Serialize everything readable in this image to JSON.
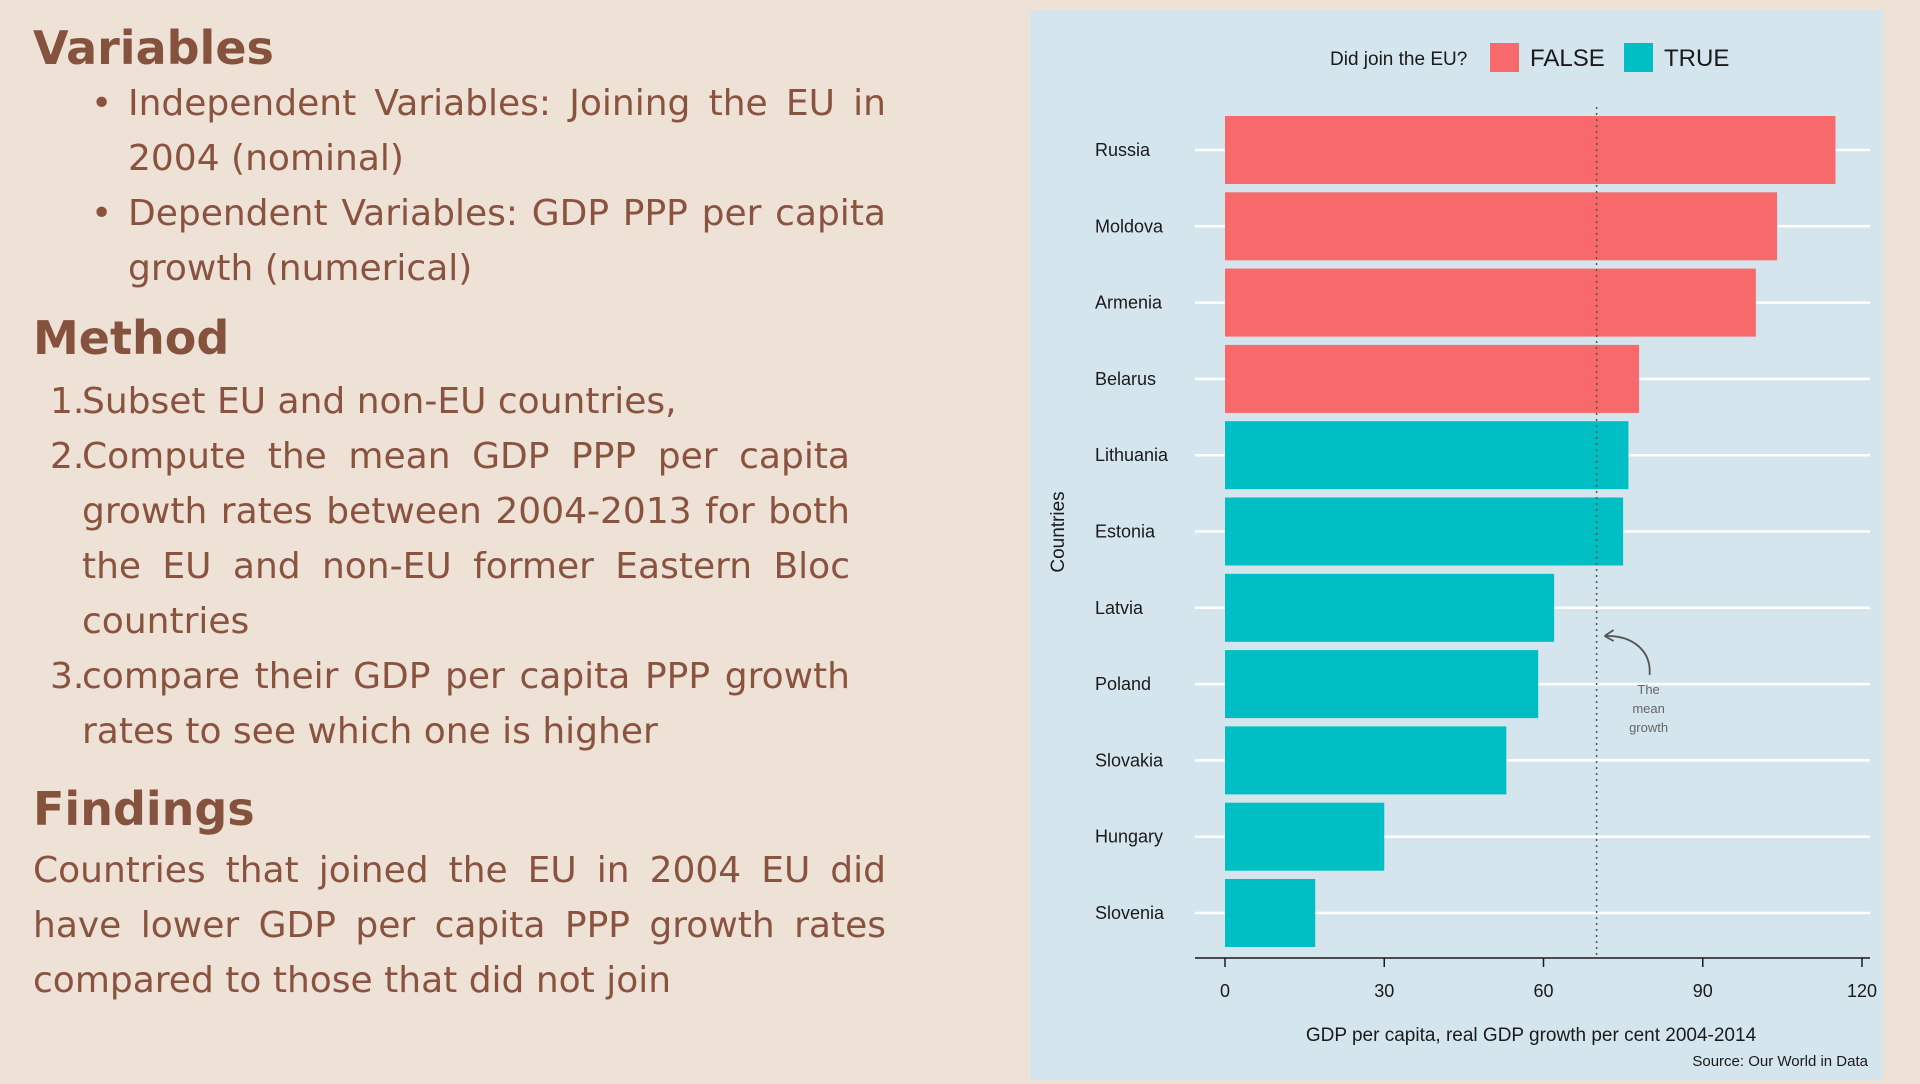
{
  "left": {
    "variables": {
      "heading": "Variables",
      "items": [
        "Independent Variables: Joining the EU in 2004 (nominal)",
        "Dependent Variables: GDP PPP per capita growth (numerical)"
      ]
    },
    "method": {
      "heading": "Method",
      "items": [
        {
          "num": "1.",
          "text": "Subset EU and non-EU countries,"
        },
        {
          "num": "2.",
          "text": "Compute the mean GDP PPP per capita growth rates between 2004-2013 for both the EU and non-EU former Eastern Bloc countries"
        },
        {
          "num": "3.",
          "text": "compare their GDP per capita PPP growth rates to see which one is higher"
        }
      ]
    },
    "findings": {
      "heading": "Findings",
      "text": "Countries that joined the EU in 2004 EU did have lower GDP per capita PPP growth rates compared to those that did not join"
    }
  },
  "chart_data": {
    "type": "bar",
    "orientation": "horizontal",
    "categories": [
      "Russia",
      "Moldova",
      "Armenia",
      "Belarus",
      "Lithuania",
      "Estonia",
      "Latvia",
      "Poland",
      "Slovakia",
      "Hungary",
      "Slovenia"
    ],
    "values": [
      115,
      104,
      100,
      78,
      76,
      75,
      62,
      59,
      53,
      30,
      17
    ],
    "joined_eu": [
      "FALSE",
      "FALSE",
      "FALSE",
      "FALSE",
      "TRUE",
      "TRUE",
      "TRUE",
      "TRUE",
      "TRUE",
      "TRUE",
      "TRUE"
    ],
    "legend": {
      "title": "Did join the EU?",
      "placement": "top",
      "entries": [
        {
          "label": "FALSE",
          "color": "#f8696b"
        },
        {
          "label": "TRUE",
          "color": "#00bfc4"
        }
      ]
    },
    "xlabel": "GDP per capita, real GDP growth per cent 2004-2014",
    "ylabel": "Countries",
    "xlim": [
      0,
      120
    ],
    "xticks": [
      0,
      30,
      60,
      90,
      120
    ],
    "mean_line": 70,
    "annotation": [
      "The",
      "mean",
      "growth"
    ],
    "caption": "Source: Our World in Data",
    "grid": true,
    "background": "#d4e5ed"
  }
}
